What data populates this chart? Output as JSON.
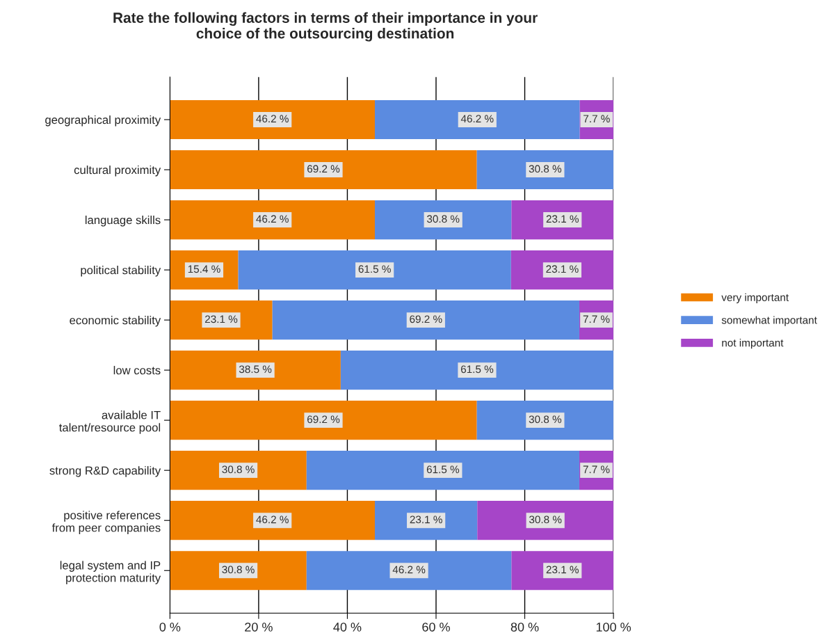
{
  "chart_data": {
    "type": "bar",
    "orientation": "horizontal",
    "stacked": true,
    "title": "Rate the following factors in terms of their importance in your\nchoice of the outsourcing destination",
    "categories": [
      "geographical proximity",
      "cultural proximity",
      "language skills",
      "political stability",
      "economic stability",
      "low costs",
      "available IT\ntalent/resource pool",
      "strong R&D capability",
      "positive references\nfrom peer companies",
      "legal system and IP\nprotection maturity"
    ],
    "series": [
      {
        "name": "very important",
        "color": "#f08000",
        "values": [
          46.2,
          69.2,
          46.2,
          15.4,
          23.1,
          38.5,
          69.2,
          30.8,
          46.2,
          30.8
        ],
        "value_labels": [
          "46.2 %",
          "69.2 %",
          "46.2 %",
          "15.4 %",
          "23.1 %",
          "38.5 %",
          "69.2 %",
          "30.8 %",
          "46.2 %",
          "30.8 %"
        ]
      },
      {
        "name": "somewhat important",
        "color": "#5b8be0",
        "values": [
          46.2,
          30.8,
          30.8,
          61.5,
          69.2,
          61.5,
          30.8,
          61.5,
          23.1,
          46.2
        ],
        "value_labels": [
          "46.2 %",
          "30.8 %",
          "30.8 %",
          "61.5 %",
          "69.2 %",
          "61.5 %",
          "30.8 %",
          "61.5 %",
          "23.1 %",
          "46.2 %"
        ]
      },
      {
        "name": "not important",
        "color": "#a645c8",
        "values": [
          7.7,
          null,
          23.1,
          23.1,
          7.7,
          null,
          null,
          7.7,
          30.8,
          23.1
        ],
        "value_labels": [
          "7.7 %",
          null,
          "23.1 %",
          "23.1 %",
          "7.7 %",
          null,
          null,
          "7.7 %",
          "30.8 %",
          "23.1 %"
        ]
      }
    ],
    "xlim": [
      0,
      100
    ],
    "xticks": [
      {
        "value": 0,
        "label": "0 %"
      },
      {
        "value": 20,
        "label": "20 %"
      },
      {
        "value": 40,
        "label": "40 %"
      },
      {
        "value": 60,
        "label": "60 %"
      },
      {
        "value": 80,
        "label": "80 %"
      },
      {
        "value": 100,
        "label": "100 %"
      }
    ],
    "grid": "x",
    "legend": "right"
  }
}
